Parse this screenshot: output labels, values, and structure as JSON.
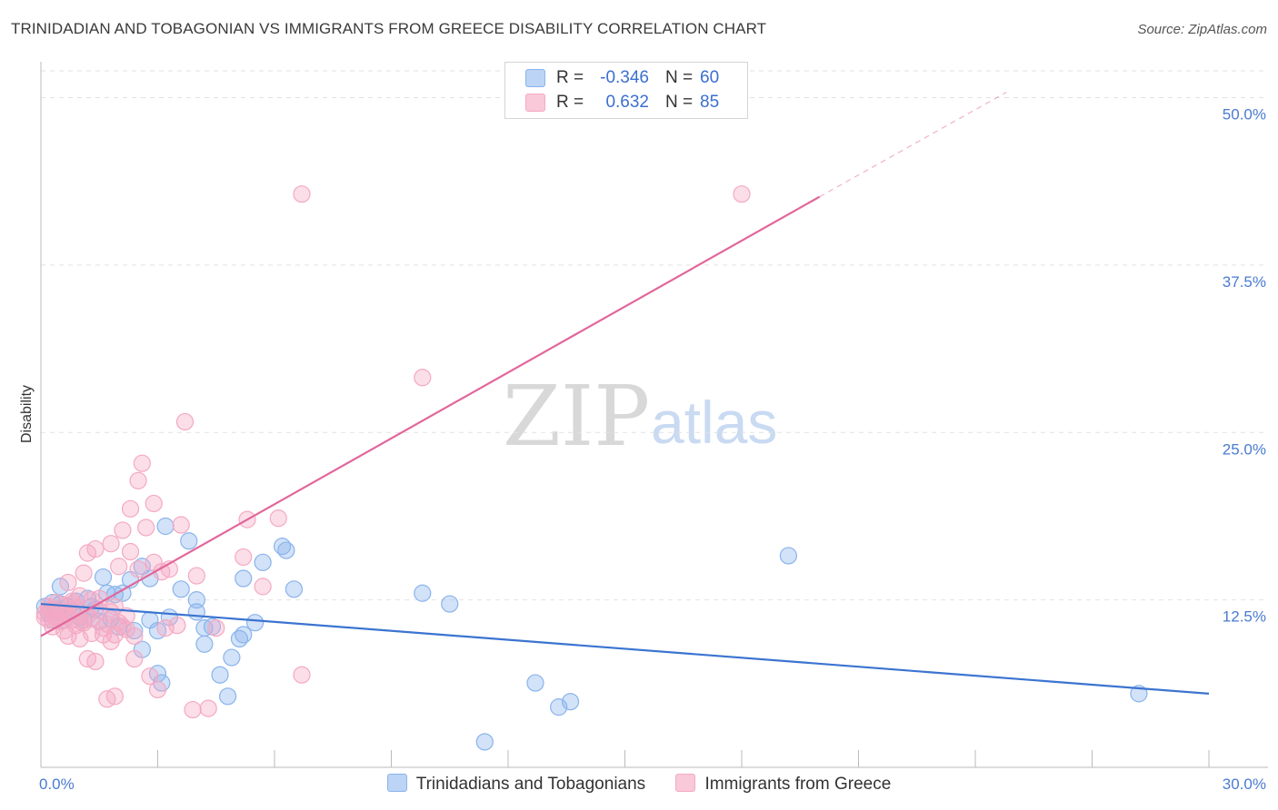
{
  "chart_data": {
    "type": "scatter",
    "title": "TRINIDADIAN AND TOBAGONIAN VS IMMIGRANTS FROM GREECE DISABILITY CORRELATION CHART",
    "source": "Source: ZipAtlas.com",
    "xlabel": "",
    "ylabel": "Disability",
    "xlim": [
      0,
      30
    ],
    "ylim": [
      0,
      52
    ],
    "x_tick_labels": {
      "min": "0.0%",
      "max": "30.0%"
    },
    "y_ticks": [
      {
        "value": 12.5,
        "label": "12.5%"
      },
      {
        "value": 25.0,
        "label": "25.0%"
      },
      {
        "value": 37.5,
        "label": "37.5%"
      },
      {
        "value": 50.0,
        "label": "50.0%"
      }
    ],
    "watermark": {
      "zip": "ZIP",
      "atlas": "atlas"
    },
    "legend": {
      "r_label": "R =",
      "n_label": "N =",
      "entries": [
        {
          "r": "-0.346",
          "n": "60"
        },
        {
          "r": "0.632",
          "n": "85"
        }
      ]
    },
    "series": [
      {
        "name": "Trinidadians and Tobagonians",
        "color": "#89b4ec",
        "line_color": "#3b74d0",
        "trend": {
          "x0": 0,
          "y0": 12.2,
          "x1": 30,
          "y1": 5.5
        },
        "points": [
          [
            0.1,
            12.0
          ],
          [
            0.2,
            11.5
          ],
          [
            0.3,
            12.3
          ],
          [
            0.4,
            11.8
          ],
          [
            0.5,
            13.5
          ],
          [
            0.5,
            12.2
          ],
          [
            0.6,
            11.0
          ],
          [
            0.7,
            12.0
          ],
          [
            0.8,
            11.7
          ],
          [
            0.9,
            12.4
          ],
          [
            1.0,
            11.2
          ],
          [
            1.1,
            11.0
          ],
          [
            1.2,
            12.6
          ],
          [
            1.3,
            12.0
          ],
          [
            1.4,
            11.8
          ],
          [
            1.5,
            10.9
          ],
          [
            1.6,
            14.2
          ],
          [
            1.7,
            13.0
          ],
          [
            1.8,
            11.1
          ],
          [
            1.9,
            12.9
          ],
          [
            2.0,
            10.5
          ],
          [
            2.1,
            13.0
          ],
          [
            2.3,
            14.0
          ],
          [
            2.4,
            10.2
          ],
          [
            2.6,
            15.0
          ],
          [
            2.6,
            8.8
          ],
          [
            2.8,
            14.1
          ],
          [
            2.8,
            11.0
          ],
          [
            3.0,
            10.2
          ],
          [
            3.0,
            7.0
          ],
          [
            3.1,
            6.3
          ],
          [
            3.2,
            18.0
          ],
          [
            3.3,
            11.2
          ],
          [
            3.6,
            13.3
          ],
          [
            3.8,
            16.9
          ],
          [
            4.0,
            11.6
          ],
          [
            4.0,
            12.5
          ],
          [
            4.2,
            10.4
          ],
          [
            4.2,
            9.2
          ],
          [
            4.4,
            10.5
          ],
          [
            4.6,
            6.9
          ],
          [
            4.8,
            5.3
          ],
          [
            4.9,
            8.2
          ],
          [
            5.1,
            9.6
          ],
          [
            5.2,
            9.9
          ],
          [
            5.2,
            14.1
          ],
          [
            5.5,
            10.8
          ],
          [
            5.7,
            15.3
          ],
          [
            6.2,
            16.5
          ],
          [
            6.3,
            16.2
          ],
          [
            6.5,
            13.3
          ],
          [
            9.8,
            13.0
          ],
          [
            10.5,
            12.2
          ],
          [
            11.4,
            1.9
          ],
          [
            12.7,
            6.3
          ],
          [
            13.3,
            4.5
          ],
          [
            13.6,
            4.9
          ],
          [
            19.2,
            15.8
          ],
          [
            28.2,
            5.5
          ],
          [
            0.3,
            11.0
          ]
        ]
      },
      {
        "name": "Immigrants from Greece",
        "color": "#f4a9c3",
        "line_color": "#e2669a",
        "trend": {
          "x0": 0,
          "y0": 9.8,
          "x1": 20.0,
          "y1": 42.6
        },
        "trend_dashed": {
          "x0": 20.0,
          "y0": 42.6,
          "x1": 24.8,
          "y1": 50.4
        },
        "points": [
          [
            0.1,
            11.5
          ],
          [
            0.2,
            11.0
          ],
          [
            0.2,
            12.0
          ],
          [
            0.3,
            11.8
          ],
          [
            0.3,
            10.5
          ],
          [
            0.4,
            11.2
          ],
          [
            0.4,
            12.3
          ],
          [
            0.5,
            10.9
          ],
          [
            0.5,
            11.6
          ],
          [
            0.6,
            12.1
          ],
          [
            0.6,
            10.2
          ],
          [
            0.7,
            11.4
          ],
          [
            0.7,
            9.8
          ],
          [
            0.7,
            13.8
          ],
          [
            0.8,
            11.0
          ],
          [
            0.8,
            12.4
          ],
          [
            0.9,
            10.6
          ],
          [
            0.9,
            11.9
          ],
          [
            1.0,
            9.6
          ],
          [
            1.0,
            12.8
          ],
          [
            1.1,
            14.5
          ],
          [
            1.1,
            10.8
          ],
          [
            1.2,
            8.1
          ],
          [
            1.2,
            11.3
          ],
          [
            1.2,
            16.0
          ],
          [
            1.3,
            12.5
          ],
          [
            1.3,
            10.0
          ],
          [
            1.4,
            16.3
          ],
          [
            1.4,
            7.9
          ],
          [
            1.5,
            11.7
          ],
          [
            1.5,
            12.6
          ],
          [
            1.6,
            10.4
          ],
          [
            1.6,
            9.9
          ],
          [
            1.7,
            10.7
          ],
          [
            1.7,
            5.1
          ],
          [
            1.8,
            9.4
          ],
          [
            1.8,
            16.7
          ],
          [
            1.8,
            11.6
          ],
          [
            1.9,
            5.3
          ],
          [
            1.9,
            12.0
          ],
          [
            2.0,
            15.0
          ],
          [
            2.0,
            10.8
          ],
          [
            2.1,
            17.7
          ],
          [
            2.1,
            10.5
          ],
          [
            2.2,
            11.3
          ],
          [
            2.2,
            10.3
          ],
          [
            2.3,
            19.3
          ],
          [
            2.4,
            9.8
          ],
          [
            2.4,
            8.1
          ],
          [
            2.5,
            14.8
          ],
          [
            2.5,
            21.4
          ],
          [
            2.6,
            22.7
          ],
          [
            2.7,
            17.9
          ],
          [
            2.8,
            6.8
          ],
          [
            2.9,
            19.7
          ],
          [
            2.9,
            15.3
          ],
          [
            3.0,
            5.8
          ],
          [
            3.1,
            14.6
          ],
          [
            3.2,
            10.4
          ],
          [
            3.3,
            14.8
          ],
          [
            3.5,
            10.6
          ],
          [
            3.6,
            18.1
          ],
          [
            3.7,
            25.8
          ],
          [
            3.9,
            4.3
          ],
          [
            4.0,
            14.3
          ],
          [
            4.3,
            4.4
          ],
          [
            4.5,
            10.4
          ],
          [
            5.2,
            15.7
          ],
          [
            5.3,
            18.5
          ],
          [
            5.7,
            13.5
          ],
          [
            6.1,
            18.6
          ],
          [
            6.7,
            6.9
          ],
          [
            6.7,
            42.8
          ],
          [
            9.8,
            29.1
          ],
          [
            18.0,
            42.8
          ],
          [
            0.1,
            11.2
          ],
          [
            0.2,
            11.7
          ],
          [
            0.4,
            11.0
          ],
          [
            0.5,
            11.4
          ],
          [
            0.6,
            11.3
          ],
          [
            0.8,
            12.2
          ],
          [
            1.0,
            10.9
          ],
          [
            1.3,
            11.1
          ],
          [
            1.9,
            9.9
          ],
          [
            2.3,
            16.1
          ]
        ]
      }
    ]
  }
}
